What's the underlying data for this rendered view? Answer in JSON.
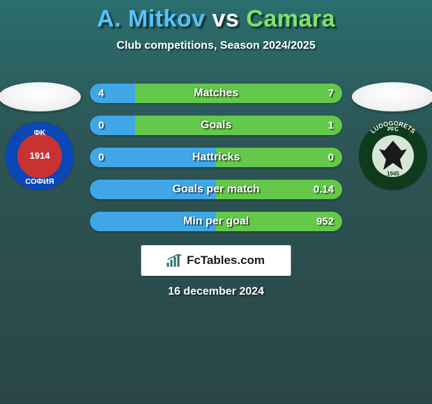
{
  "title": {
    "player_a": "A. Mitkov",
    "vs_word": "vs",
    "player_b": "Camara",
    "color_a": "#56c3ff",
    "color_vs": "#ffffff",
    "color_b": "#7ee36a",
    "fontsize": 34
  },
  "subtitle": "Club competitions, Season 2024/2025",
  "crests": {
    "left": {
      "bg_color": "#0a47b8",
      "inner_color": "#c83232",
      "ring_text_top": "ΦΚ",
      "center_text": "1914",
      "ring_text_bottom": "СОФИЯ"
    },
    "right": {
      "bg_outer": "#0f3b1d",
      "bg_inner": "#d7e7d7",
      "bird_color": "#1a1a1a",
      "ring_text_top": "PFC",
      "ring_text_side": "LUDOGORETS",
      "center_text": "1945"
    }
  },
  "stats": {
    "bar_color_a": "#3fa7e6",
    "bar_color_b": "#64c84a",
    "height": 28,
    "radius": 14,
    "gap": 18,
    "label_color": "#ffffff",
    "label_fontsize": 16,
    "val_fontsize": 15,
    "rows": [
      {
        "label": "Matches",
        "val_a": "4",
        "val_b": "7",
        "pct_a": 18
      },
      {
        "label": "Goals",
        "val_a": "0",
        "val_b": "1",
        "pct_a": 18
      },
      {
        "label": "Hattricks",
        "val_a": "0",
        "val_b": "0",
        "pct_a": 50
      },
      {
        "label": "Goals per match",
        "val_a": "",
        "val_b": "0.14",
        "pct_a": 50
      },
      {
        "label": "Min per goal",
        "val_a": "",
        "val_b": "952",
        "pct_a": 50
      }
    ]
  },
  "brand": {
    "text": "FcTables.com",
    "bg": "#ffffff",
    "text_color": "#1a1a1a",
    "icon_color": "#2a6e6e"
  },
  "date": "16 december 2024",
  "background": {
    "top": "#2a6e6e",
    "mid": "#2d5555",
    "bottom": "#2a4545"
  }
}
